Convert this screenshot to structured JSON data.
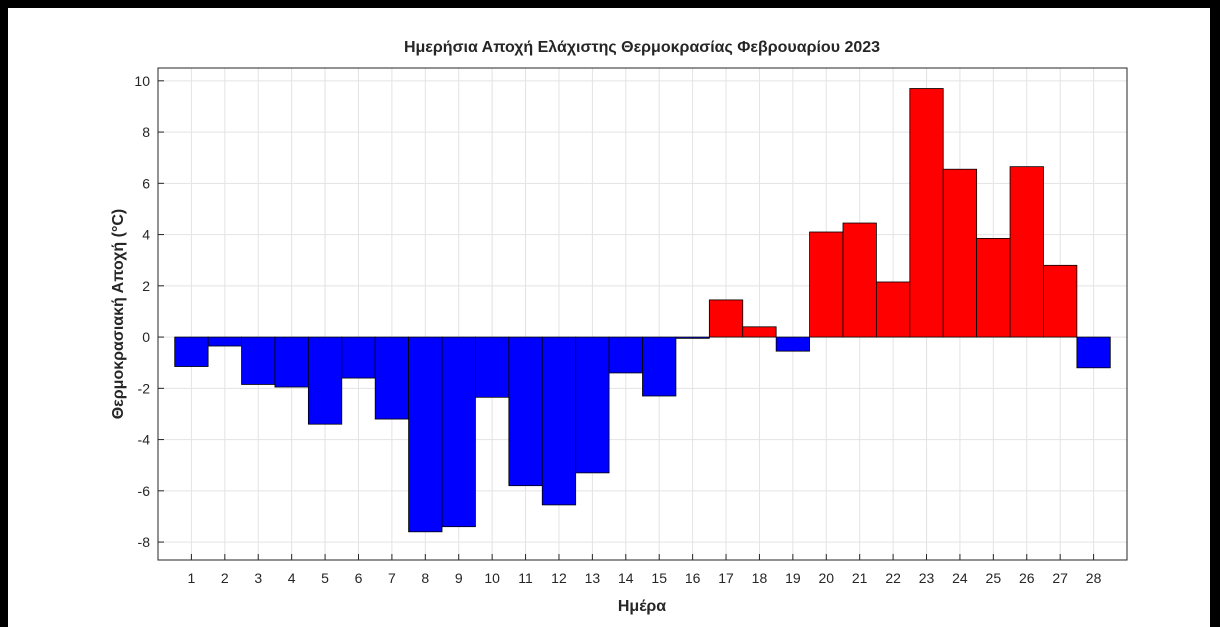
{
  "chart_data": {
    "type": "bar",
    "title": "Ημερήσια Αποχή Ελάχιστης Θερμοκρασίας Φεβρουαρίου 2023",
    "x_label": "Ημέρα",
    "y_label": "Θερμοκρασιακή Αποχή (°C)",
    "x": [
      1,
      2,
      3,
      4,
      5,
      6,
      7,
      8,
      9,
      10,
      11,
      12,
      13,
      14,
      15,
      16,
      17,
      18,
      19,
      20,
      21,
      22,
      23,
      24,
      25,
      26,
      27,
      28
    ],
    "values": [
      -1.15,
      -0.35,
      -1.85,
      -1.95,
      -3.4,
      -1.6,
      -3.2,
      -7.6,
      -7.4,
      -2.35,
      -5.8,
      -6.55,
      -5.3,
      -1.4,
      -2.3,
      -0.05,
      1.45,
      0.4,
      -0.55,
      4.1,
      4.45,
      2.15,
      9.7,
      6.55,
      3.85,
      6.65,
      2.8,
      -1.2
    ],
    "colors": {
      "positive": "#ff0000",
      "negative": "#0000ff"
    },
    "xlim": [
      0,
      29
    ],
    "xticks": [
      1,
      2,
      3,
      4,
      5,
      6,
      7,
      8,
      9,
      10,
      11,
      12,
      13,
      14,
      15,
      16,
      17,
      18,
      19,
      20,
      21,
      22,
      23,
      24,
      25,
      26,
      27,
      28
    ],
    "ylim": [
      -8.7,
      10.5
    ],
    "yticks": [
      -8,
      -6,
      -4,
      -2,
      0,
      2,
      4,
      6,
      8,
      10
    ],
    "grid": true
  }
}
